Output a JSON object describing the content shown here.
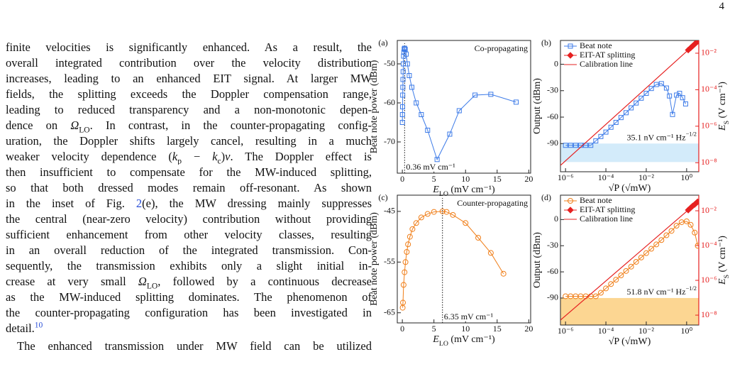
{
  "page_number": "4",
  "paragraphs": [
    [
      [
        "finite velocities is significantly enhanced. As a result, the"
      ],
      [
        "overall integrated contribution over the velocity distribution"
      ],
      [
        "increases, leading to an enhanced EIT signal. At larger MW"
      ],
      [
        "fields, the splitting exceeds the Doppler compensation range,"
      ],
      [
        "leading to reduced transparency and a non-monotonic depen-"
      ],
      [
        "dence on ",
        {
          "text": "Ω",
          "style": "italic"
        },
        {
          "text": "LO",
          "style": "sub"
        },
        ". In contrast, in the counter-propagating config-"
      ],
      [
        "uration, the Doppler shifts largely cancel, resulting in a much"
      ],
      [
        "weaker velocity dependence (",
        {
          "text": "k",
          "style": "italic"
        },
        {
          "text": "p",
          "style": "sub"
        },
        " − ",
        {
          "text": "k",
          "style": "italic"
        },
        {
          "text": "c",
          "style": "sub"
        },
        ")",
        {
          "text": "v",
          "style": "italic"
        },
        ". The Doppler effect is"
      ],
      [
        "then insufficient to compensate for the MW-induced splitting,"
      ],
      [
        "so that both dressed modes remain off-resonant. As shown"
      ],
      [
        "in the inset of Fig. ",
        {
          "text": "2",
          "style": "link"
        },
        "(e), the MW dressing mainly suppresses"
      ],
      [
        "the central (near-zero velocity) contribution without providing"
      ],
      [
        "sufficient enhancement from other velocity classes, resulting"
      ],
      [
        "in an overall reduction of the integrated transmission. Con-"
      ],
      [
        "sequently, the transmission exhibits only a slight initial in-"
      ],
      [
        "crease at very small ",
        {
          "text": "Ω",
          "style": "italic"
        },
        {
          "text": "LO",
          "style": "sub"
        },
        ", followed by a continuous decrease"
      ],
      [
        "as the MW-induced splitting dominates. The phenomenon of"
      ],
      [
        "the counter-propagating configuration has been investigated in"
      ],
      [
        "detail.",
        {
          "text": "10",
          "style": "sup-link"
        }
      ]
    ],
    [
      [
        "The enhanced transmission under MW field can be utilized"
      ]
    ]
  ],
  "chart_data": [
    {
      "type": "line",
      "panel_label": "(a)",
      "title": "Co-propagating",
      "xlabel": [
        {
          "text": "E",
          "style": "italic"
        },
        {
          "text": "LO",
          "style": "sub"
        },
        " (mV cm⁻¹)"
      ],
      "ylabel": "Beat note power (dBm)",
      "xlim": [
        -0.8,
        20.3
      ],
      "ylim": [
        -78,
        -44
      ],
      "xticks": [
        0,
        5,
        10,
        15,
        20
      ],
      "yticks": [
        -50,
        -60,
        -70
      ],
      "series": [
        {
          "color": "#3d7be8",
          "marker": "square",
          "line": true,
          "x": [
            0.01,
            0.02,
            0.04,
            0.06,
            0.08,
            0.1,
            0.13,
            0.16,
            0.2,
            0.25,
            0.3,
            0.36,
            0.45,
            0.6,
            0.8,
            1.1,
            1.5,
            2.2,
            3,
            4,
            5.5,
            7.5,
            9,
            11.5,
            14,
            18
          ],
          "values": [
            -65,
            -63,
            -61,
            -58,
            -56,
            -54,
            -52,
            -50,
            -48,
            -47,
            -46.2,
            -46,
            -46.3,
            -47.5,
            -50,
            -53,
            -56,
            -60,
            -63,
            -67,
            -74.5,
            -68,
            -62,
            -58,
            -57.8,
            -59.8
          ]
        }
      ],
      "vline": {
        "x": 0.36,
        "label": "0.36 mV cm⁻¹"
      }
    },
    {
      "type": "line",
      "panel_label": "(b)",
      "xscale": "log",
      "y2scale": "log",
      "legend": "upper left",
      "xlabel": "√P (√mW)",
      "ylabel": "Output (dBm)",
      "y2label": [
        {
          "text": "E",
          "style": "italic"
        },
        {
          "text": "S",
          "style": "sub"
        },
        " (V cm⁻¹)"
      ],
      "y2color": "#e62020",
      "xlim": [
        5.6e-07,
        4
      ],
      "ylim": [
        -122,
        27
      ],
      "y2lim": [
        3.2e-09,
        0.05
      ],
      "xticks": [
        {
          "value": 1e-06,
          "label": "10⁻⁶"
        },
        {
          "value": 0.0001,
          "label": "10⁻⁴"
        },
        {
          "value": 0.01,
          "label": "10⁻²"
        },
        {
          "value": 1,
          "label": "10⁰"
        }
      ],
      "yticks": [
        0,
        -30,
        -60,
        -90
      ],
      "y2ticks": [
        {
          "value": 0.01,
          "label": "10⁻²"
        },
        {
          "value": 0.0001,
          "label": "10⁻⁴"
        },
        {
          "value": 1e-06,
          "label": "10⁻⁶"
        },
        {
          "value": 1e-08,
          "label": "10⁻⁸"
        }
      ],
      "band": [
        -111,
        -90
      ],
      "band_color": "#d3ebfa",
      "note": [
        "35.1 nV cm⁻¹ Hz",
        {
          "text": "−1/2",
          "style": "sup"
        }
      ],
      "series": [
        {
          "name": "Beat note",
          "color": "#3d7be8",
          "marker": "square",
          "line": true,
          "x": [
            1e-06,
            1.78e-06,
            3.16e-06,
            5.62e-06,
            1e-05,
            1.78e-05,
            3.16e-05,
            5.62e-05,
            0.0001,
            0.000178,
            0.000316,
            0.000562,
            0.001,
            0.00178,
            0.00316,
            0.00562,
            0.01,
            0.0178,
            0.0316,
            0.0562,
            0.1,
            0.141,
            0.2,
            0.316,
            0.447,
            0.631,
            0.891
          ],
          "values": [
            -92,
            -92,
            -92,
            -92,
            -92,
            -92,
            -87,
            -82,
            -77,
            -71.5,
            -66,
            -60.5,
            -55,
            -49.5,
            -44,
            -38.5,
            -33,
            -27.5,
            -23,
            -22,
            -27,
            -36,
            -57,
            -35,
            -33,
            -38,
            -45
          ]
        },
        {
          "name": "EIT-AT splitting",
          "color": "#e62020",
          "marker": "diamond",
          "line": false,
          "axis": "y2",
          "x": [
            1.2,
            1.6,
            2,
            2.5,
            3,
            3.5
          ],
          "values": [
            0.015,
            0.02,
            0.025,
            0.0315,
            0.038,
            0.044
          ]
        },
        {
          "name": "Calibration line",
          "color": "#e62020",
          "line": true,
          "axis": "y2",
          "x": [
            5.6e-07,
            4
          ],
          "values": [
            7.1e-09,
            0.05
          ]
        }
      ]
    },
    {
      "type": "line",
      "panel_label": "(c)",
      "title": "Counter-propagating",
      "xlabel": [
        {
          "text": "E",
          "style": "italic"
        },
        {
          "text": "LO",
          "style": "sub"
        },
        " (mV cm⁻¹)"
      ],
      "ylabel": "Beat note power (dBm)",
      "xlim": [
        -0.8,
        20.3
      ],
      "ylim": [
        -67,
        -41.8
      ],
      "xticks": [
        0,
        5,
        10,
        15,
        20
      ],
      "yticks": [
        -45,
        -55,
        -65
      ],
      "series": [
        {
          "color": "#f07f1a",
          "marker": "circle",
          "line": true,
          "x": [
            0.05,
            0.1,
            0.2,
            0.35,
            0.5,
            0.7,
            0.9,
            1.2,
            1.6,
            2.2,
            3,
            4,
            5,
            6.35,
            7,
            8,
            10,
            12,
            14,
            16
          ],
          "values": [
            -64,
            -63,
            -59.5,
            -57,
            -55,
            -53,
            -51.5,
            -50,
            -48.5,
            -47.3,
            -46.2,
            -45.5,
            -45.1,
            -45,
            -45.1,
            -45.7,
            -47.3,
            -50.2,
            -53.2,
            -57.3
          ]
        }
      ],
      "vline": {
        "x": 6.35,
        "label": "6.35 mV cm⁻¹"
      }
    },
    {
      "type": "line",
      "panel_label": "(d)",
      "xscale": "log",
      "y2scale": "log",
      "legend": "upper left",
      "xlabel": "√P (√mW)",
      "ylabel": "Output (dBm)",
      "y2label": [
        {
          "text": "E",
          "style": "italic"
        },
        {
          "text": "S",
          "style": "sub"
        },
        " (V cm⁻¹)"
      ],
      "y2color": "#e62020",
      "xlim": [
        5.6e-07,
        4
      ],
      "ylim": [
        -121,
        28
      ],
      "y2lim": [
        2.7e-09,
        0.079
      ],
      "xticks": [
        {
          "value": 1e-06,
          "label": "10⁻⁶"
        },
        {
          "value": 0.0001,
          "label": "10⁻⁴"
        },
        {
          "value": 0.01,
          "label": "10⁻²"
        },
        {
          "value": 1,
          "label": "10⁰"
        }
      ],
      "yticks": [
        0,
        -30,
        -60,
        -90
      ],
      "y2ticks": [
        {
          "value": 0.01,
          "label": "10⁻²"
        },
        {
          "value": 0.0001,
          "label": "10⁻⁴"
        },
        {
          "value": 1e-06,
          "label": "10⁻⁶"
        },
        {
          "value": 1e-08,
          "label": "10⁻⁸"
        }
      ],
      "band": [
        -121,
        -90
      ],
      "band_color": "#fcd692",
      "note": [
        "51.8 nV cm⁻¹ Hz",
        {
          "text": "−1/2",
          "style": "sup"
        }
      ],
      "series": [
        {
          "name": "Beat note",
          "color": "#f07f1a",
          "marker": "circle",
          "line": true,
          "x": [
            1e-06,
            1.78e-06,
            3.16e-06,
            5.62e-06,
            1e-05,
            1.78e-05,
            3.16e-05,
            5.62e-05,
            0.0001,
            0.000178,
            0.000316,
            0.000562,
            0.001,
            0.00178,
            0.00316,
            0.00562,
            0.01,
            0.0178,
            0.0316,
            0.0562,
            0.1,
            0.178,
            0.316,
            0.562,
            1,
            1.58,
            2.51,
            3.55
          ],
          "values": [
            -88,
            -88,
            -88,
            -88,
            -88,
            -88,
            -88,
            -84,
            -79,
            -74,
            -69,
            -64,
            -59,
            -54,
            -48.5,
            -43.5,
            -38.5,
            -33.5,
            -28.5,
            -23.5,
            -18,
            -13,
            -7,
            -3,
            -2,
            -6,
            -15,
            -30
          ]
        },
        {
          "name": "EIT-AT splitting",
          "color": "#e62020",
          "marker": "diamond",
          "line": false,
          "axis": "y2",
          "x": [
            1.2,
            1.6,
            2,
            2.5,
            3,
            3.5
          ],
          "values": [
            0.011,
            0.015,
            0.019,
            0.023,
            0.028,
            0.033
          ]
        },
        {
          "name": "Calibration line",
          "color": "#e62020",
          "line": true,
          "axis": "y2",
          "x": [
            5.6e-07,
            4
          ],
          "values": [
            5.2e-09,
            0.037
          ]
        }
      ]
    }
  ]
}
